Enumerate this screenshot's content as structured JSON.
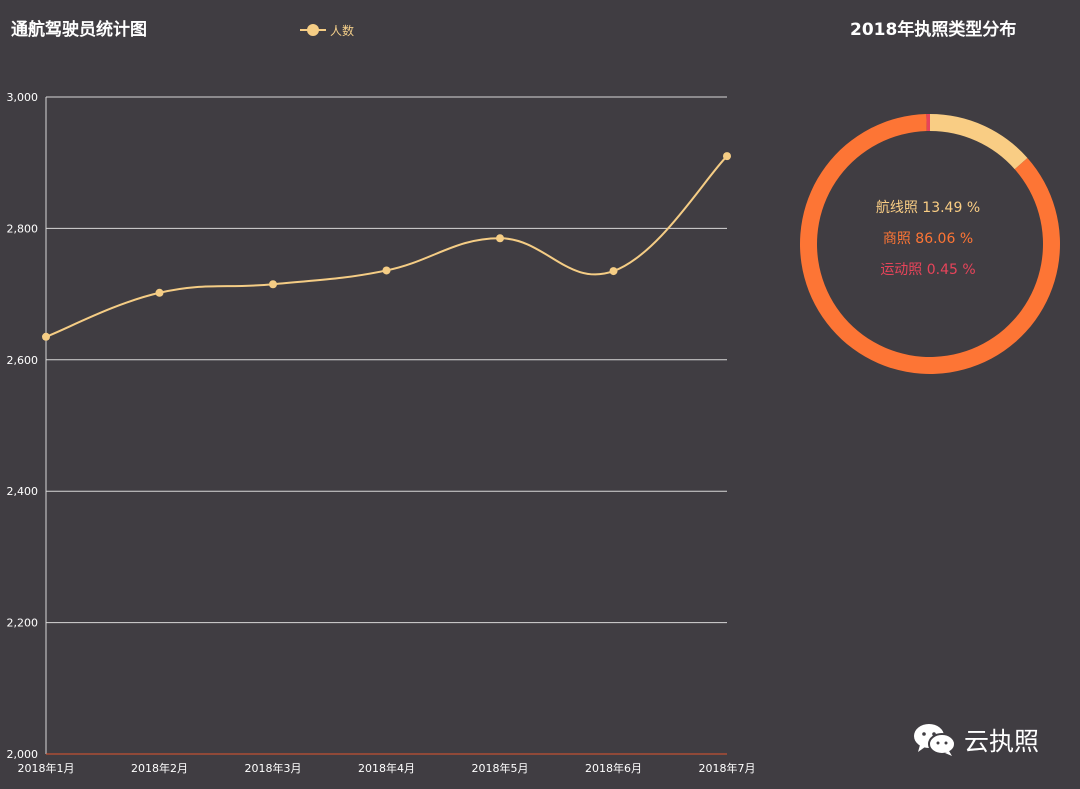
{
  "line_chart": {
    "title": "通航驾驶员统计图",
    "legend": "人数"
  },
  "donut_chart": {
    "title": "2018年执照类型分布"
  },
  "watermark": {
    "text": "云执照",
    "icon": "wechat-icon"
  },
  "chart_data": [
    {
      "type": "line",
      "title": "通航驾驶员统计图",
      "x": [
        "2018年1月",
        "2018年2月",
        "2018年3月",
        "2018年4月",
        "2018年5月",
        "2018年6月",
        "2018年7月"
      ],
      "series": [
        {
          "name": "人数",
          "values": [
            2635,
            2702,
            2715,
            2736,
            2785,
            2735,
            2910
          ],
          "color": "#f5cd85"
        }
      ],
      "ylim": [
        2000,
        3000
      ],
      "yticks": [
        "2,000",
        "2,200",
        "2,400",
        "2,600",
        "2,800",
        "3,000"
      ],
      "grid": true,
      "smooth": true,
      "legend_position": "top"
    },
    {
      "type": "pie",
      "title": "2018年执照类型分布",
      "donut": true,
      "slices": [
        {
          "label": "航线照 13.49 %",
          "name": "航线照",
          "value": 13.49,
          "color": "#f9cd84"
        },
        {
          "label": "商照 86.06 %",
          "name": "商照",
          "value": 86.06,
          "color": "#fd7535"
        },
        {
          "label": "运动照 0.45 %",
          "name": "运动照",
          "value": 0.45,
          "color": "#e7445a"
        }
      ]
    }
  ]
}
